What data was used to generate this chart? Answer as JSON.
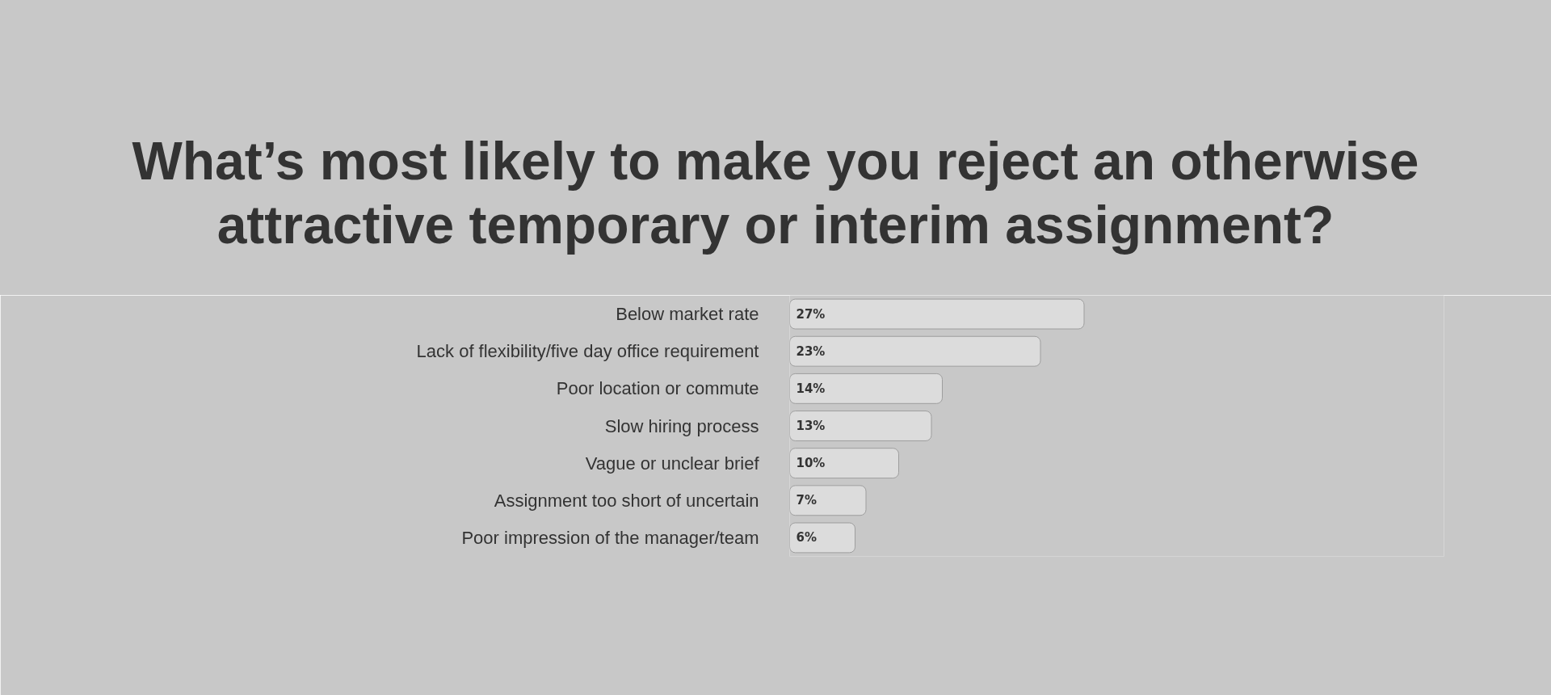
{
  "chart_data": {
    "type": "bar",
    "orientation": "horizontal",
    "title": "What’s most likely to make you reject an otherwise attractive temporary or interim assignment?",
    "categories": [
      "Below market rate",
      "Lack of flexibility/five day office requirement",
      "Poor location or commute",
      "Slow hiring process",
      "Vague or unclear brief",
      "Assignment too short of uncertain",
      "Poor impression of the manager/team"
    ],
    "values": [
      27,
      23,
      14,
      13,
      10,
      7,
      6
    ],
    "value_labels": [
      "27%",
      "23%",
      "14%",
      "13%",
      "10%",
      "7%",
      "6%"
    ],
    "color": "#dcdcdc",
    "xlim": [
      0,
      60
    ],
    "tick_labels": "y",
    "grid": false
  }
}
